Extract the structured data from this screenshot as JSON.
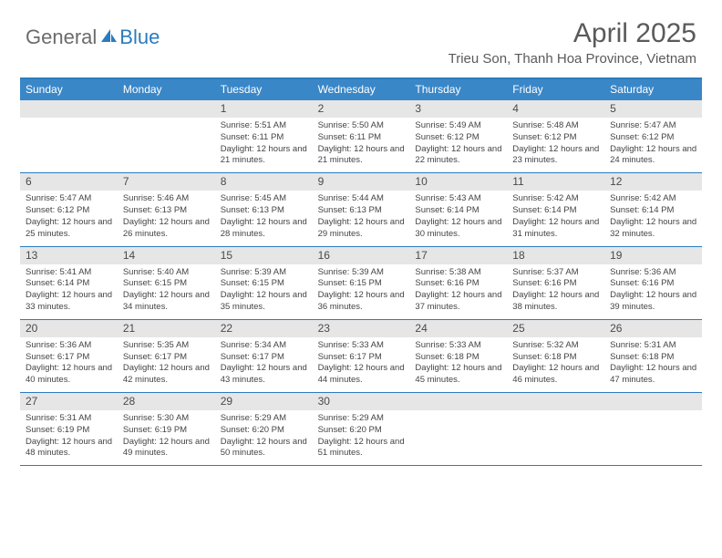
{
  "logo": {
    "general": "General",
    "blue": "Blue"
  },
  "title": "April 2025",
  "location": "Trieu Son, Thanh Hoa Province, Vietnam",
  "colors": {
    "header_band": "#3a87c8",
    "rule": "#2b7bbf",
    "daynum_band": "#e6e6e6",
    "text": "#444444"
  },
  "dow": [
    "Sunday",
    "Monday",
    "Tuesday",
    "Wednesday",
    "Thursday",
    "Friday",
    "Saturday"
  ],
  "weeks": [
    [
      null,
      null,
      {
        "n": "1",
        "sr": "5:51 AM",
        "ss": "6:11 PM",
        "dl": "12 hours and 21 minutes."
      },
      {
        "n": "2",
        "sr": "5:50 AM",
        "ss": "6:11 PM",
        "dl": "12 hours and 21 minutes."
      },
      {
        "n": "3",
        "sr": "5:49 AM",
        "ss": "6:12 PM",
        "dl": "12 hours and 22 minutes."
      },
      {
        "n": "4",
        "sr": "5:48 AM",
        "ss": "6:12 PM",
        "dl": "12 hours and 23 minutes."
      },
      {
        "n": "5",
        "sr": "5:47 AM",
        "ss": "6:12 PM",
        "dl": "12 hours and 24 minutes."
      }
    ],
    [
      {
        "n": "6",
        "sr": "5:47 AM",
        "ss": "6:12 PM",
        "dl": "12 hours and 25 minutes."
      },
      {
        "n": "7",
        "sr": "5:46 AM",
        "ss": "6:13 PM",
        "dl": "12 hours and 26 minutes."
      },
      {
        "n": "8",
        "sr": "5:45 AM",
        "ss": "6:13 PM",
        "dl": "12 hours and 28 minutes."
      },
      {
        "n": "9",
        "sr": "5:44 AM",
        "ss": "6:13 PM",
        "dl": "12 hours and 29 minutes."
      },
      {
        "n": "10",
        "sr": "5:43 AM",
        "ss": "6:14 PM",
        "dl": "12 hours and 30 minutes."
      },
      {
        "n": "11",
        "sr": "5:42 AM",
        "ss": "6:14 PM",
        "dl": "12 hours and 31 minutes."
      },
      {
        "n": "12",
        "sr": "5:42 AM",
        "ss": "6:14 PM",
        "dl": "12 hours and 32 minutes."
      }
    ],
    [
      {
        "n": "13",
        "sr": "5:41 AM",
        "ss": "6:14 PM",
        "dl": "12 hours and 33 minutes."
      },
      {
        "n": "14",
        "sr": "5:40 AM",
        "ss": "6:15 PM",
        "dl": "12 hours and 34 minutes."
      },
      {
        "n": "15",
        "sr": "5:39 AM",
        "ss": "6:15 PM",
        "dl": "12 hours and 35 minutes."
      },
      {
        "n": "16",
        "sr": "5:39 AM",
        "ss": "6:15 PM",
        "dl": "12 hours and 36 minutes."
      },
      {
        "n": "17",
        "sr": "5:38 AM",
        "ss": "6:16 PM",
        "dl": "12 hours and 37 minutes."
      },
      {
        "n": "18",
        "sr": "5:37 AM",
        "ss": "6:16 PM",
        "dl": "12 hours and 38 minutes."
      },
      {
        "n": "19",
        "sr": "5:36 AM",
        "ss": "6:16 PM",
        "dl": "12 hours and 39 minutes."
      }
    ],
    [
      {
        "n": "20",
        "sr": "5:36 AM",
        "ss": "6:17 PM",
        "dl": "12 hours and 40 minutes."
      },
      {
        "n": "21",
        "sr": "5:35 AM",
        "ss": "6:17 PM",
        "dl": "12 hours and 42 minutes."
      },
      {
        "n": "22",
        "sr": "5:34 AM",
        "ss": "6:17 PM",
        "dl": "12 hours and 43 minutes."
      },
      {
        "n": "23",
        "sr": "5:33 AM",
        "ss": "6:17 PM",
        "dl": "12 hours and 44 minutes."
      },
      {
        "n": "24",
        "sr": "5:33 AM",
        "ss": "6:18 PM",
        "dl": "12 hours and 45 minutes."
      },
      {
        "n": "25",
        "sr": "5:32 AM",
        "ss": "6:18 PM",
        "dl": "12 hours and 46 minutes."
      },
      {
        "n": "26",
        "sr": "5:31 AM",
        "ss": "6:18 PM",
        "dl": "12 hours and 47 minutes."
      }
    ],
    [
      {
        "n": "27",
        "sr": "5:31 AM",
        "ss": "6:19 PM",
        "dl": "12 hours and 48 minutes."
      },
      {
        "n": "28",
        "sr": "5:30 AM",
        "ss": "6:19 PM",
        "dl": "12 hours and 49 minutes."
      },
      {
        "n": "29",
        "sr": "5:29 AM",
        "ss": "6:20 PM",
        "dl": "12 hours and 50 minutes."
      },
      {
        "n": "30",
        "sr": "5:29 AM",
        "ss": "6:20 PM",
        "dl": "12 hours and 51 minutes."
      },
      null,
      null,
      null
    ]
  ],
  "labels": {
    "sunrise": "Sunrise:",
    "sunset": "Sunset:",
    "daylight": "Daylight:"
  }
}
